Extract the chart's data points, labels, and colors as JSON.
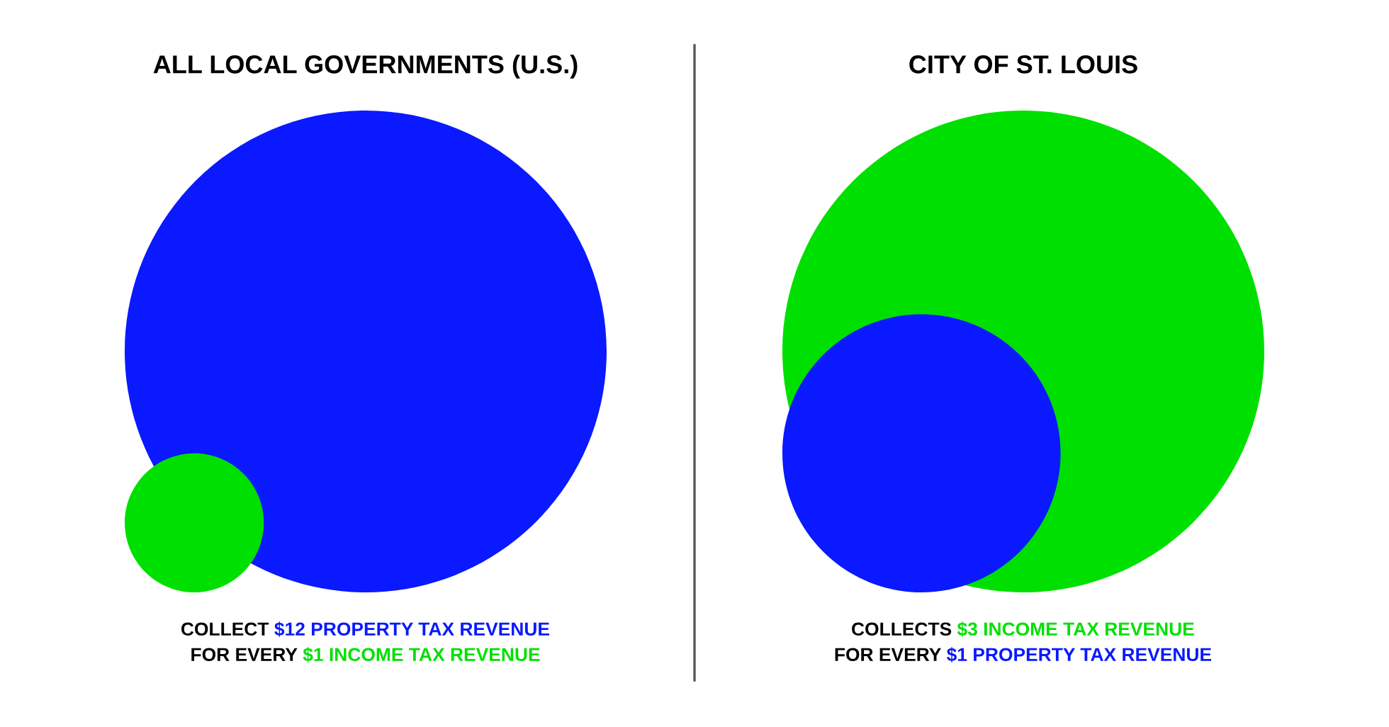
{
  "chart_data": [
    {
      "type": "other",
      "title": "ALL LOCAL GOVERNMENTS (U.S.)",
      "categories": [
        null,
        null
      ],
      "values": [
        12,
        1
      ],
      "colors": [
        "#0a19ff",
        "#00e000"
      ],
      "value_labels": [
        "$12 PROPERTY TAX REVENUE",
        "$1 INCOME TAX REVENUE"
      ],
      "annotations": [
        "COLLECT",
        "FOR EVERY"
      ]
    },
    {
      "type": "other",
      "title": "CITY OF ST. LOUIS",
      "categories": [
        null,
        null
      ],
      "values": [
        3,
        1
      ],
      "colors": [
        "#00e000",
        "#0a19ff"
      ],
      "value_labels": [
        "$3 INCOME TAX REVENUE",
        "$1 PROPERTY TAX REVENUE"
      ],
      "annotations": [
        "COLLECTS",
        "FOR EVERY"
      ]
    }
  ]
}
